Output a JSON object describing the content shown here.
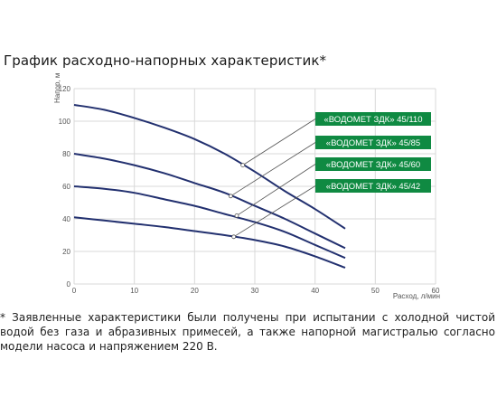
{
  "title": "График расходно-напорных характеристик*",
  "footnote": "* Заявленные характеристики были получены при испытании с холодной чистой водой без газа и абразивных примесей, а также напорной магистралью согласно модели насоса и напряжением 220 В.",
  "colors": {
    "curve": "#22306f",
    "label_bg": "#0f8a42",
    "grid": "#d9d9d9",
    "leader": "#555555"
  },
  "chart_data": {
    "type": "line",
    "xlabel": "Расход, л/мин",
    "ylabel": "Напор, м",
    "xlim": [
      0,
      60
    ],
    "ylim": [
      0,
      120
    ],
    "xticks": [
      0,
      10,
      20,
      30,
      40,
      50,
      60
    ],
    "yticks": [
      0,
      20,
      40,
      60,
      80,
      100,
      120
    ],
    "grid": true,
    "series": [
      {
        "name": "«ВОДОМЕТ ЗДК» 45/110",
        "x": [
          0,
          5,
          10,
          15,
          20,
          25,
          30,
          35,
          40,
          45
        ],
        "y": [
          110,
          107,
          102,
          96,
          89,
          80,
          69,
          57,
          46,
          34
        ],
        "marker": {
          "x": 28,
          "y": 73
        }
      },
      {
        "name": "«ВОДОМЕТ ЗДК» 45/85",
        "x": [
          0,
          5,
          10,
          15,
          20,
          25,
          30,
          35,
          40,
          45
        ],
        "y": [
          80,
          77,
          73,
          68,
          62,
          56,
          48,
          40,
          31,
          22
        ],
        "marker": {
          "x": 26,
          "y": 54
        }
      },
      {
        "name": "«ВОДОМЕТ ЗДК» 45/60",
        "x": [
          0,
          5,
          10,
          15,
          20,
          25,
          30,
          35,
          40,
          45
        ],
        "y": [
          60,
          58.5,
          56,
          52,
          48,
          43,
          38,
          32,
          24,
          16
        ],
        "marker": {
          "x": 27,
          "y": 42
        }
      },
      {
        "name": "«ВОДОМЕТ ЗДК» 45/42",
        "x": [
          0,
          5,
          10,
          15,
          20,
          25,
          30,
          35,
          40,
          45
        ],
        "y": [
          41,
          39,
          37,
          35,
          32.5,
          30,
          27,
          23,
          17,
          10
        ],
        "marker": {
          "x": 26.5,
          "y": 29
        }
      }
    ]
  }
}
